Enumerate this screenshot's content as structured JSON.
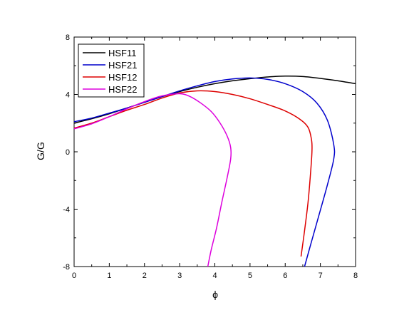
{
  "chart_data": {
    "type": "line",
    "xlabel": "ϕ",
    "ylabel": "G/G",
    "xlim": [
      0,
      8
    ],
    "ylim": [
      -8,
      8
    ],
    "x_ticks": [
      0,
      1,
      2,
      3,
      4,
      5,
      6,
      7,
      8
    ],
    "y_ticks": [
      -8,
      -4,
      0,
      4,
      8
    ],
    "grid": false,
    "legend_position": "top-left",
    "series": [
      {
        "name": "HSF11",
        "color": "#000000",
        "points": [
          [
            0,
            2.0
          ],
          [
            0.5,
            2.3
          ],
          [
            1.0,
            2.65
          ],
          [
            1.5,
            3.05
          ],
          [
            2.0,
            3.45
          ],
          [
            2.5,
            3.85
          ],
          [
            3.0,
            4.2
          ],
          [
            3.5,
            4.5
          ],
          [
            4.0,
            4.75
          ],
          [
            4.5,
            4.95
          ],
          [
            5.0,
            5.1
          ],
          [
            5.5,
            5.22
          ],
          [
            6.0,
            5.28
          ],
          [
            6.5,
            5.25
          ],
          [
            7.0,
            5.12
          ],
          [
            7.5,
            4.95
          ],
          [
            8.0,
            4.75
          ]
        ]
      },
      {
        "name": "HSF21",
        "color": "#0000cc",
        "points": [
          [
            0,
            2.1
          ],
          [
            0.5,
            2.35
          ],
          [
            1.0,
            2.7
          ],
          [
            1.5,
            3.05
          ],
          [
            2.0,
            3.45
          ],
          [
            2.5,
            3.85
          ],
          [
            3.0,
            4.25
          ],
          [
            3.5,
            4.6
          ],
          [
            4.0,
            4.9
          ],
          [
            4.5,
            5.08
          ],
          [
            5.0,
            5.15
          ],
          [
            5.5,
            5.05
          ],
          [
            6.0,
            4.75
          ],
          [
            6.5,
            4.2
          ],
          [
            6.9,
            3.4
          ],
          [
            7.2,
            2.2
          ],
          [
            7.38,
            0.5
          ],
          [
            7.38,
            -0.5
          ],
          [
            7.2,
            -2.3
          ],
          [
            6.95,
            -4.5
          ],
          [
            6.72,
            -6.5
          ],
          [
            6.55,
            -8.0
          ]
        ]
      },
      {
        "name": "HSF12",
        "color": "#dd0000",
        "points": [
          [
            0,
            1.65
          ],
          [
            0.5,
            2.0
          ],
          [
            1.0,
            2.45
          ],
          [
            1.5,
            2.9
          ],
          [
            2.0,
            3.3
          ],
          [
            2.5,
            3.75
          ],
          [
            3.0,
            4.1
          ],
          [
            3.5,
            4.25
          ],
          [
            4.0,
            4.2
          ],
          [
            4.5,
            4.0
          ],
          [
            5.0,
            3.7
          ],
          [
            5.5,
            3.3
          ],
          [
            6.0,
            2.85
          ],
          [
            6.4,
            2.3
          ],
          [
            6.65,
            1.7
          ],
          [
            6.75,
            0.8
          ],
          [
            6.76,
            0.0
          ],
          [
            6.72,
            -1.5
          ],
          [
            6.65,
            -3.5
          ],
          [
            6.55,
            -5.5
          ],
          [
            6.45,
            -7.3
          ]
        ]
      },
      {
        "name": "HSF22",
        "color": "#dd00dd",
        "points": [
          [
            0,
            1.6
          ],
          [
            0.5,
            1.95
          ],
          [
            1.0,
            2.45
          ],
          [
            1.5,
            3.0
          ],
          [
            2.0,
            3.5
          ],
          [
            2.5,
            3.9
          ],
          [
            3.0,
            4.05
          ],
          [
            3.3,
            3.85
          ],
          [
            3.6,
            3.4
          ],
          [
            3.9,
            2.8
          ],
          [
            4.15,
            2.0
          ],
          [
            4.35,
            1.1
          ],
          [
            4.45,
            0.3
          ],
          [
            4.45,
            -0.5
          ],
          [
            4.35,
            -1.8
          ],
          [
            4.2,
            -3.5
          ],
          [
            4.05,
            -5.3
          ],
          [
            3.9,
            -6.8
          ],
          [
            3.8,
            -8.0
          ]
        ]
      }
    ]
  }
}
